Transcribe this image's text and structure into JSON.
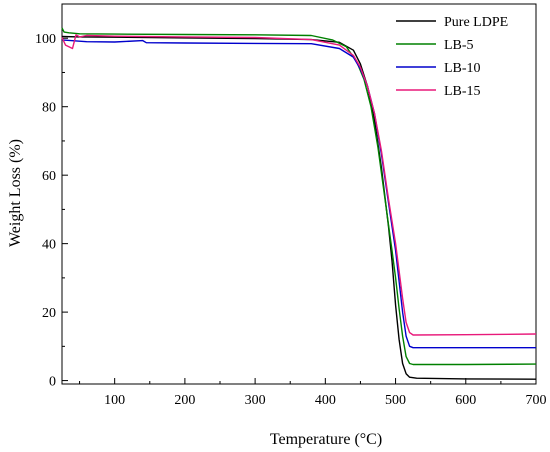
{
  "chart_data": {
    "type": "line",
    "xlabel": "Temperature (°C)",
    "ylabel": "Weight Loss (%)",
    "xlim": [
      25,
      700
    ],
    "ylim": [
      -1,
      110
    ],
    "x_ticks": [
      100,
      200,
      300,
      400,
      500,
      600,
      700
    ],
    "y_ticks": [
      0,
      20,
      40,
      60,
      80,
      100
    ],
    "legend_position": "top-right",
    "grid": false,
    "series": [
      {
        "name": "Pure LDPE",
        "color": "#000000",
        "x": [
          25,
          50,
          100,
          200,
          300,
          380,
          420,
          440,
          450,
          460,
          470,
          480,
          490,
          495,
          500,
          505,
          510,
          515,
          520,
          530,
          600,
          700
        ],
        "y": [
          100.5,
          100.4,
          100.3,
          100.1,
          99.9,
          99.6,
          98.8,
          96.5,
          92.5,
          86,
          76,
          62,
          45,
          35,
          22,
          12,
          5,
          2,
          1,
          0.7,
          0.5,
          0.4
        ]
      },
      {
        "name": "LB-5",
        "color": "#008000",
        "x": [
          25,
          28,
          35,
          50,
          100,
          200,
          300,
          380,
          410,
          430,
          445,
          455,
          465,
          475,
          485,
          495,
          500,
          505,
          510,
          515,
          520,
          525,
          600,
          700
        ],
        "y": [
          103,
          101.8,
          101.6,
          101.3,
          101.2,
          101.1,
          101.0,
          100.8,
          99.5,
          97.5,
          93,
          88,
          80,
          68,
          53,
          38,
          30,
          21,
          13,
          7,
          5,
          4.7,
          4.7,
          4.8
        ]
      },
      {
        "name": "LB-10",
        "color": "#0000cc",
        "x": [
          25,
          60,
          100,
          140,
          145,
          200,
          300,
          380,
          420,
          440,
          450,
          460,
          470,
          480,
          490,
          500,
          505,
          510,
          515,
          520,
          525,
          600,
          700
        ],
        "y": [
          99.5,
          99,
          98.9,
          99.3,
          98.7,
          98.6,
          98.5,
          98.4,
          97,
          94.5,
          91,
          86,
          78,
          66,
          52,
          38,
          29,
          20,
          13,
          10,
          9.6,
          9.6,
          9.6
        ]
      },
      {
        "name": "LB-15",
        "color": "#e8197a",
        "x": [
          25,
          30,
          40,
          45,
          50,
          60,
          100,
          200,
          300,
          380,
          420,
          440,
          450,
          460,
          470,
          480,
          490,
          500,
          505,
          510,
          515,
          520,
          525,
          600,
          700
        ],
        "y": [
          100.2,
          98,
          97,
          101,
          100.4,
          100.8,
          100.6,
          100.4,
          100.2,
          99.6,
          98,
          95,
          91.5,
          86,
          78,
          67,
          53,
          40,
          32,
          24,
          17,
          14,
          13.3,
          13.4,
          13.6
        ]
      }
    ]
  }
}
